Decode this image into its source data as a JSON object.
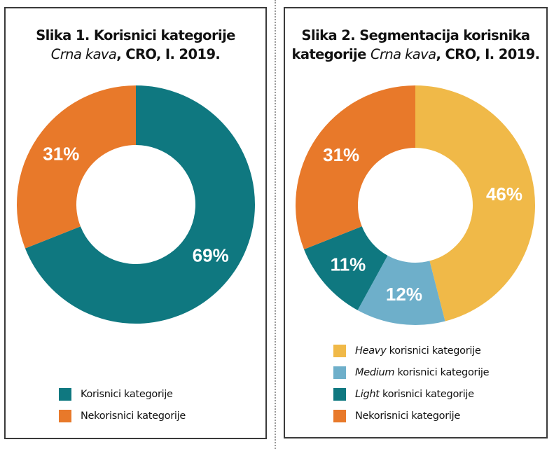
{
  "chart_data": [
    {
      "type": "pie",
      "variant": "donut",
      "title": {
        "line1": "Slika 1. Korisnici kategorije",
        "line2_italic": "Crna kava",
        "line2_rest": ", CRO, I. 2019."
      },
      "slices": [
        {
          "name": "Korisnici kategorije",
          "value": 69,
          "label": "69%",
          "color": "#0f7880"
        },
        {
          "name": "Nekorisnici kategorije",
          "value": 31,
          "label": "31%",
          "color": "#e8792a"
        }
      ],
      "legend": [
        {
          "italic": "",
          "text": "Korisnici kategorije",
          "color": "#0f7880"
        },
        {
          "italic": "",
          "text": "Nekorisnici kategorije",
          "color": "#e8792a"
        }
      ],
      "legend_position": "bottom"
    },
    {
      "type": "pie",
      "variant": "donut",
      "title": {
        "line1": "Slika 2. Segmentacija korisnika",
        "line2_pre": "kategorije ",
        "line2_italic": "Crna kava",
        "line2_rest": ", CRO, I. 2019."
      },
      "slices": [
        {
          "name": "Heavy korisnici kategorije",
          "value": 46,
          "label": "46%",
          "color": "#f0b948"
        },
        {
          "name": "Medium korisnici kategorije",
          "value": 12,
          "label": "12%",
          "color": "#6eafca"
        },
        {
          "name": "Light korisnici kategorije",
          "value": 11,
          "label": "11%",
          "color": "#0f7880"
        },
        {
          "name": "Nekorisnici kategorije",
          "value": 31,
          "label": "31%",
          "color": "#e8792a"
        }
      ],
      "legend": [
        {
          "italic": "Heavy",
          "text": " korisnici kategorije",
          "color": "#f0b948"
        },
        {
          "italic": "Medium",
          "text": " korisnici kategorije",
          "color": "#6eafca"
        },
        {
          "italic": "Light",
          "text": " korisnici kategorije",
          "color": "#0f7880"
        },
        {
          "italic": "",
          "text": "Nekorisnici kategorije",
          "color": "#e8792a"
        }
      ],
      "legend_position": "bottom"
    }
  ]
}
